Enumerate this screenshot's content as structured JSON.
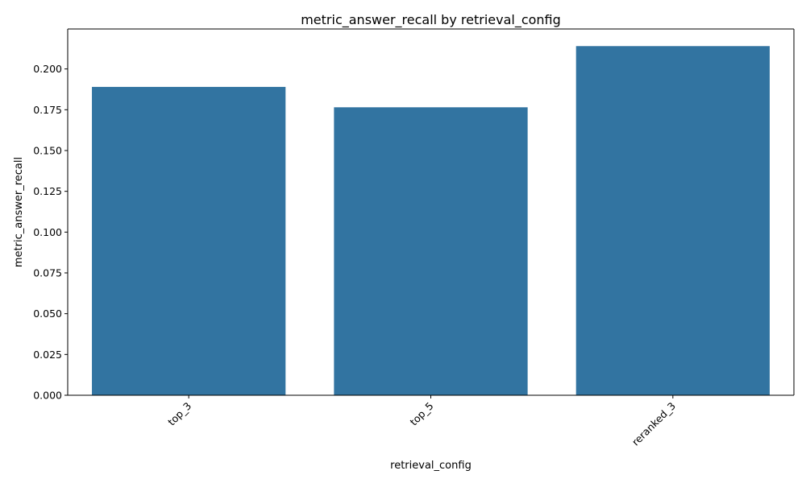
{
  "chart_data": {
    "type": "bar",
    "title": "metric_answer_recall by retrieval_config",
    "xlabel": "retrieval_config",
    "ylabel": "metric_answer_recall",
    "categories": [
      "top_3",
      "top_5",
      "reranked_3"
    ],
    "values": [
      0.189,
      0.1765,
      0.214
    ],
    "ylim": [
      0,
      0.2245
    ],
    "yticks": [
      0.0,
      0.025,
      0.05,
      0.075,
      0.1,
      0.125,
      0.15,
      0.175,
      0.2
    ],
    "ytick_labels": [
      "0.000",
      "0.025",
      "0.050",
      "0.075",
      "0.100",
      "0.125",
      "0.150",
      "0.175",
      "0.200"
    ],
    "x_tick_rotation_degrees": 45,
    "grid": false,
    "legend": "none",
    "bar_color": "#3274a1"
  }
}
